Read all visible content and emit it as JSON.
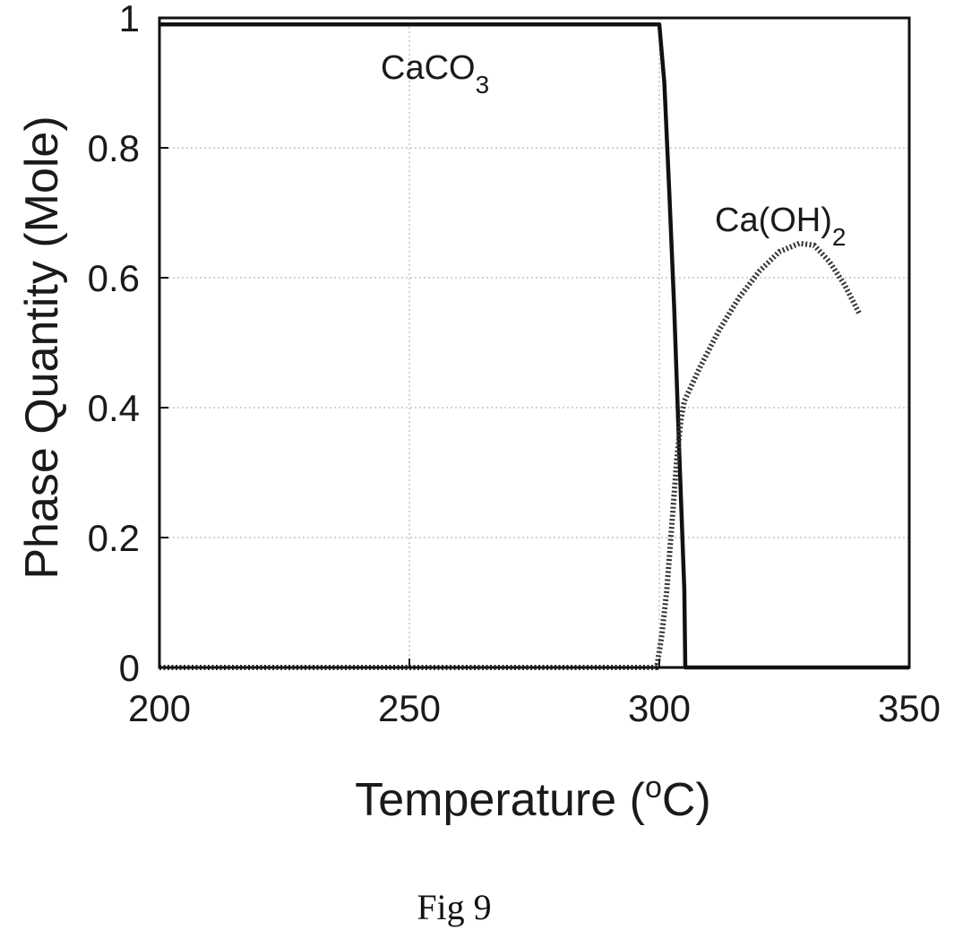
{
  "chart_data": {
    "type": "line",
    "title": "",
    "xlabel": {
      "main": "Temperature (",
      "sup": "o",
      "tail": "C)"
    },
    "ylabel": "Phase Quantity (Mole)",
    "xlim": [
      200,
      350
    ],
    "ylim": [
      0,
      1
    ],
    "x_ticks": [
      "200",
      "250",
      "300",
      "350"
    ],
    "x_tick_values": [
      200,
      250,
      300,
      350
    ],
    "y_ticks": [
      "0",
      "0.2",
      "0.4",
      "0.6",
      "0.8",
      "1"
    ],
    "y_tick_values": [
      0,
      0.2,
      0.4,
      0.6,
      0.8,
      1
    ],
    "grid": true,
    "series": [
      {
        "name": "CaCO3",
        "style": "solid",
        "x": [
          200,
          300,
          301,
          302,
          303,
          304,
          305,
          305.2,
          350
        ],
        "y": [
          0.99,
          0.99,
          0.9,
          0.73,
          0.55,
          0.33,
          0.12,
          0,
          0
        ]
      },
      {
        "name": "Ca(OH)2",
        "style": "dotted",
        "x": [
          200,
          299.5,
          300.5,
          301.5,
          302.5,
          303.5,
          304.3,
          305,
          308,
          312,
          316,
          320,
          324,
          328,
          331,
          334,
          337,
          340
        ],
        "y": [
          0,
          0,
          0.05,
          0.12,
          0.22,
          0.32,
          0.38,
          0.41,
          0.46,
          0.52,
          0.57,
          0.61,
          0.64,
          0.653,
          0.65,
          0.625,
          0.59,
          0.545
        ]
      }
    ],
    "annotations": [
      {
        "main": "CaCO",
        "sub": "3"
      },
      {
        "main": "Ca(OH)",
        "sub": "2"
      }
    ]
  },
  "caption": "Fig 9"
}
